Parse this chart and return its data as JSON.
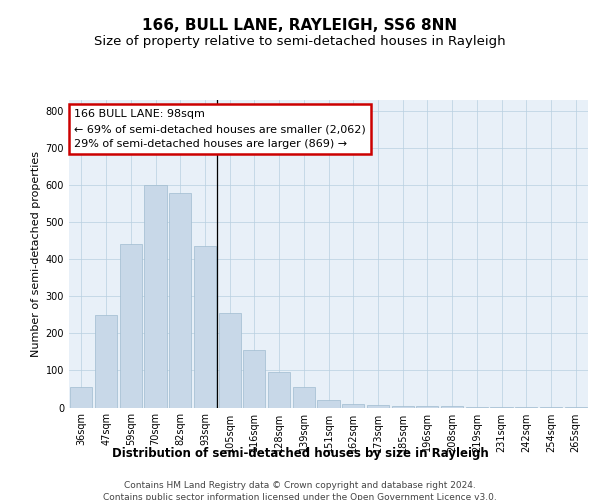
{
  "title1": "166, BULL LANE, RAYLEIGH, SS6 8NN",
  "title2": "Size of property relative to semi-detached houses in Rayleigh",
  "xlabel": "Distribution of semi-detached houses by size in Rayleigh",
  "ylabel": "Number of semi-detached properties",
  "categories": [
    "36sqm",
    "47sqm",
    "59sqm",
    "70sqm",
    "82sqm",
    "93sqm",
    "105sqm",
    "116sqm",
    "128sqm",
    "139sqm",
    "151sqm",
    "162sqm",
    "173sqm",
    "185sqm",
    "196sqm",
    "208sqm",
    "219sqm",
    "231sqm",
    "242sqm",
    "254sqm",
    "265sqm"
  ],
  "values": [
    55,
    250,
    440,
    600,
    580,
    435,
    255,
    155,
    95,
    55,
    20,
    10,
    8,
    5,
    4,
    3,
    2,
    2,
    1,
    1,
    1
  ],
  "highlight_index": 5,
  "bar_color": "#c8d8e8",
  "bar_edge_color": "#a0bcd0",
  "highlight_bar_edge_color": "#000000",
  "annotation_title": "166 BULL LANE: 98sqm",
  "annotation_line1": "← 69% of semi-detached houses are smaller (2,062)",
  "annotation_line2": "29% of semi-detached houses are larger (869) →",
  "annotation_box_color": "#ffffff",
  "annotation_box_edge_color": "#cc0000",
  "ylim": [
    0,
    830
  ],
  "plot_background": "#e8f0f8",
  "footer": "Contains HM Land Registry data © Crown copyright and database right 2024.\nContains public sector information licensed under the Open Government Licence v3.0.",
  "title1_fontsize": 11,
  "title2_fontsize": 9.5,
  "xlabel_fontsize": 8.5,
  "ylabel_fontsize": 8,
  "tick_fontsize": 7,
  "annotation_fontsize": 8,
  "footer_fontsize": 6.5
}
